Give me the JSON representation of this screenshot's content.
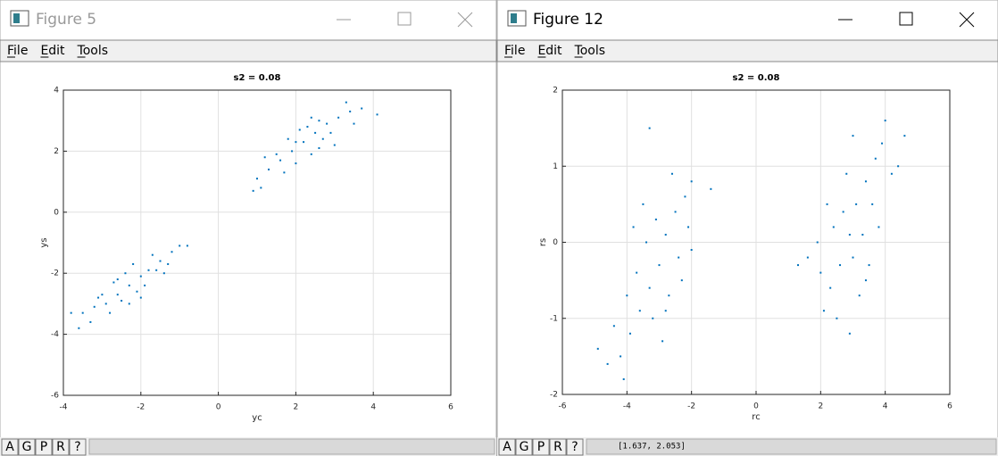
{
  "windows": [
    {
      "title": "Figure 5",
      "menu": [
        "File",
        "Edit",
        "Tools"
      ],
      "buttons": [
        "A",
        "G",
        "P",
        "R",
        "?"
      ]
    },
    {
      "title": "Figure 12",
      "menu": [
        "File",
        "Edit",
        "Tools"
      ],
      "buttons": [
        "A",
        "G",
        "P",
        "R",
        "?"
      ],
      "status": "[1.637, 2.053]"
    }
  ],
  "chart_data": [
    {
      "type": "scatter",
      "title": "s2 = 0.08",
      "x_label": "yc",
      "y_label": "ys",
      "xlim": [
        -4,
        6
      ],
      "ylim": [
        -6,
        4
      ],
      "xticks": [
        -4,
        -2,
        0,
        2,
        4,
        6
      ],
      "yticks": [
        -6,
        -4,
        -2,
        0,
        2,
        4
      ],
      "grid": true,
      "series": [
        {
          "color": "#0072bd",
          "x": [
            -2.3,
            -2.0,
            -2.6,
            -1.8,
            -2.9,
            -1.5,
            -3.2,
            -1.2,
            -3.5,
            -2.4,
            -2.1,
            -2.7,
            -1.9,
            -3.0,
            -1.6,
            -2.5,
            -3.3,
            -1.0,
            -2.2,
            -2.8,
            -3.6,
            -1.4,
            -2.0,
            -3.1,
            -1.7,
            -2.6,
            -0.8,
            -3.8,
            -2.3,
            -1.3,
            2.2,
            2.5,
            1.9,
            2.8,
            1.6,
            3.1,
            1.3,
            3.4,
            1.0,
            2.3,
            2.0,
            2.7,
            1.8,
            2.9,
            1.5,
            2.4,
            3.3,
            0.9,
            2.1,
            2.6,
            3.7,
            1.2,
            3.0,
            1.7,
            2.4,
            4.1,
            1.1,
            3.5,
            2.0,
            2.6
          ],
          "values": [
            -2.4,
            -2.1,
            -2.7,
            -1.9,
            -3.0,
            -1.6,
            -3.1,
            -1.3,
            -3.3,
            -2.0,
            -2.6,
            -2.3,
            -2.4,
            -2.7,
            -1.9,
            -2.9,
            -3.6,
            -1.1,
            -1.7,
            -3.3,
            -3.8,
            -2.0,
            -2.8,
            -2.8,
            -1.4,
            -2.2,
            -1.1,
            -3.3,
            -3.0,
            -1.7,
            2.3,
            2.6,
            2.0,
            2.9,
            1.7,
            3.1,
            1.4,
            3.3,
            1.1,
            2.8,
            1.6,
            2.4,
            2.4,
            2.6,
            1.9,
            1.9,
            3.6,
            0.7,
            2.7,
            2.1,
            3.4,
            1.8,
            2.2,
            1.3,
            3.1,
            3.2,
            0.8,
            2.9,
            2.3,
            3.0
          ]
        }
      ]
    },
    {
      "type": "scatter",
      "title": "s2 = 0.08",
      "x_label": "rc",
      "y_label": "rs",
      "xlim": [
        -6,
        6
      ],
      "ylim": [
        -2,
        2
      ],
      "xticks": [
        -6,
        -4,
        -2,
        0,
        2,
        4,
        6
      ],
      "yticks": [
        -2,
        -1,
        0,
        1,
        2
      ],
      "grid": true,
      "series": [
        {
          "color": "#0072bd",
          "x": [
            -3.0,
            -2.8,
            -3.3,
            -2.5,
            -3.6,
            -2.2,
            -3.9,
            -2.0,
            -4.2,
            -3.1,
            -2.7,
            -3.4,
            -2.4,
            -3.7,
            -2.1,
            -4.0,
            -3.2,
            -1.4,
            -2.6,
            -4.4,
            -3.5,
            -2.9,
            -4.6,
            -2.3,
            -3.8,
            -2.0,
            -4.1,
            -3.3,
            -2.8,
            -4.9,
            2.9,
            3.1,
            2.6,
            3.4,
            2.3,
            3.7,
            2.0,
            3.9,
            1.6,
            3.0,
            2.7,
            3.3,
            2.4,
            3.6,
            2.1,
            3.2,
            2.8,
            4.2,
            1.9,
            3.5,
            4.0,
            2.5,
            3.8,
            2.2,
            3.0,
            4.6,
            1.3,
            2.9,
            3.4,
            4.4
          ],
          "values": [
            -0.3,
            0.1,
            -0.6,
            0.4,
            -0.9,
            0.6,
            -1.2,
            0.8,
            -1.5,
            0.3,
            -0.7,
            0.0,
            -0.2,
            -0.4,
            0.2,
            -0.7,
            -1.0,
            0.7,
            0.9,
            -1.1,
            0.5,
            -1.3,
            -1.6,
            -0.5,
            0.2,
            -0.1,
            -1.8,
            1.5,
            -0.9,
            -1.4,
            0.1,
            0.5,
            -0.3,
            0.8,
            -0.6,
            1.1,
            -0.4,
            1.3,
            -0.2,
            -0.2,
            0.4,
            0.1,
            0.2,
            0.5,
            -0.9,
            -0.7,
            0.9,
            0.9,
            0.0,
            -0.3,
            1.6,
            -1.0,
            0.2,
            0.5,
            1.4,
            1.4,
            -0.3,
            -1.2,
            -0.5,
            1.0
          ]
        }
      ]
    }
  ]
}
